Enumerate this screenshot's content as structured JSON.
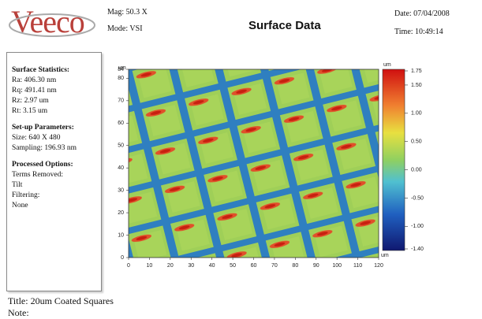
{
  "header": {
    "logo": "Veeco",
    "mag": "Mag: 50.3 X",
    "mode": "Mode: VSI",
    "title": "Surface Data",
    "date": "Date: 07/04/2008",
    "time": "Time: 10:49:14"
  },
  "statistics": {
    "heading": "Surface Statistics:",
    "items": [
      "Ra: 406.30 nm",
      "Rq: 491.41 nm",
      "Rz: 2.97 um",
      "Rt: 3.15 um"
    ]
  },
  "setup": {
    "heading": "Set-up Parameters:",
    "items": [
      "Size: 640 X 480",
      "Sampling: 196.93 nm"
    ]
  },
  "processed": {
    "heading": "Processed Options:",
    "items": [
      "Terms Removed:",
      "Tilt",
      "Filtering:",
      "None"
    ]
  },
  "plot": {
    "x_unit": "um",
    "y_unit": "um",
    "colorbar_unit": "um",
    "xticks": [
      "0",
      "10",
      "20",
      "30",
      "40",
      "50",
      "60",
      "70",
      "80",
      "90",
      "100",
      "110",
      "120"
    ],
    "yticks": [
      "0",
      "10",
      "20",
      "30",
      "40",
      "50",
      "60",
      "70",
      "80",
      "84"
    ],
    "colorbar_ticks": [
      "1.75",
      "1.50",
      "1.00",
      "0.50",
      "0.00",
      "-0.50",
      "-1.00",
      "-1.40"
    ]
  },
  "footer": {
    "title": "Title:  20um Coated Squares",
    "note": "Note:"
  }
}
